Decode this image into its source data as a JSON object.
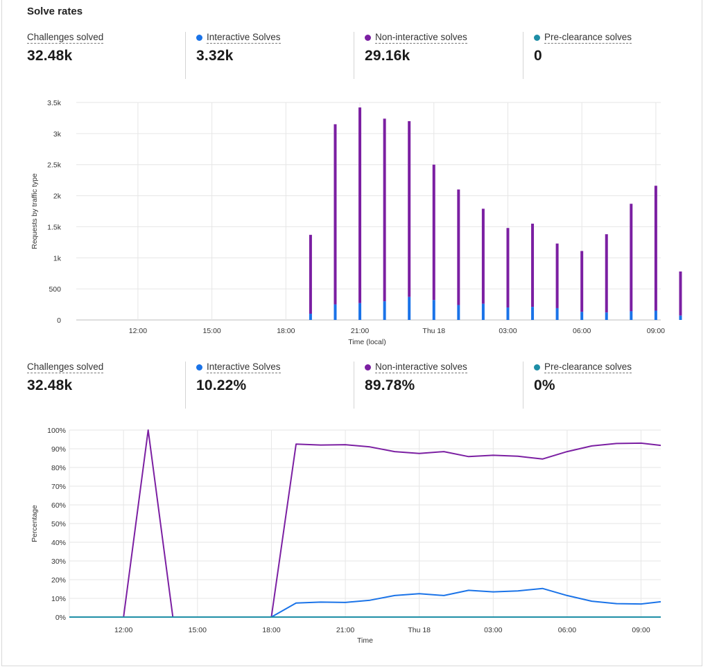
{
  "title": "Solve rates",
  "colors": {
    "interactive": "#1a73e8",
    "noninteractive": "#7b1fa2",
    "preclearance": "#1e8ea6"
  },
  "stats_counts": [
    {
      "label": "Challenges solved",
      "value": "32.48k",
      "dot": null
    },
    {
      "label": "Interactive Solves",
      "value": "3.32k",
      "dot": "#1a73e8"
    },
    {
      "label": "Non-interactive solves",
      "value": "29.16k",
      "dot": "#7b1fa2"
    },
    {
      "label": "Pre-clearance solves",
      "value": "0",
      "dot": "#1e8ea6"
    }
  ],
  "stats_percent": [
    {
      "label": "Challenges solved",
      "value": "32.48k",
      "dot": null
    },
    {
      "label": "Interactive Solves",
      "value": "10.22%",
      "dot": "#1a73e8"
    },
    {
      "label": "Non-interactive solves",
      "value": "89.78%",
      "dot": "#7b1fa2"
    },
    {
      "label": "Pre-clearance solves",
      "value": "0%",
      "dot": "#1e8ea6"
    }
  ],
  "chart_data": [
    {
      "type": "bar",
      "stacked": true,
      "ylabel": "Requests by traffic type",
      "xlabel": "Time (local)",
      "ylim": [
        0,
        3500
      ],
      "yticks": [
        "0",
        "500",
        "1k",
        "1.5k",
        "2k",
        "2.5k",
        "3k",
        "3.5k"
      ],
      "xlim": [
        9.5,
        33.2
      ],
      "xticks": [
        {
          "x": 12,
          "label": "12:00"
        },
        {
          "x": 15,
          "label": "15:00"
        },
        {
          "x": 18,
          "label": "18:00"
        },
        {
          "x": 21,
          "label": "21:00"
        },
        {
          "x": 24,
          "label": "Thu 18"
        },
        {
          "x": 27,
          "label": "03:00"
        },
        {
          "x": 30,
          "label": "06:00"
        },
        {
          "x": 33,
          "label": "09:00"
        }
      ],
      "x": [
        19,
        20,
        21,
        22,
        23,
        24,
        25,
        26,
        27,
        28,
        29,
        30,
        31,
        32,
        33,
        34
      ],
      "series": [
        {
          "name": "Interactive Solves",
          "values": [
            100,
            250,
            270,
            300,
            370,
            320,
            240,
            260,
            200,
            210,
            190,
            130,
            120,
            140,
            150,
            70
          ]
        },
        {
          "name": "Non-interactive solves",
          "values": [
            1270,
            2900,
            3150,
            2940,
            2830,
            2180,
            1860,
            1530,
            1280,
            1340,
            1040,
            980,
            1260,
            1730,
            2010,
            710
          ]
        },
        {
          "name": "Pre-clearance solves",
          "values": [
            0,
            0,
            0,
            0,
            0,
            0,
            0,
            0,
            0,
            0,
            0,
            0,
            0,
            0,
            0,
            0
          ]
        }
      ]
    },
    {
      "type": "line",
      "ylabel": "Percentage",
      "xlabel": "Time",
      "ylim": [
        0,
        100
      ],
      "yticks": [
        "0%",
        "10%",
        "20%",
        "30%",
        "40%",
        "50%",
        "60%",
        "70%",
        "80%",
        "90%",
        "100%"
      ],
      "xlim": [
        9.8,
        33.8
      ],
      "xticks": [
        {
          "x": 12,
          "label": "12:00"
        },
        {
          "x": 15,
          "label": "15:00"
        },
        {
          "x": 18,
          "label": "18:00"
        },
        {
          "x": 21,
          "label": "21:00"
        },
        {
          "x": 24,
          "label": "Thu 18"
        },
        {
          "x": 27,
          "label": "03:00"
        },
        {
          "x": 30,
          "label": "06:00"
        },
        {
          "x": 33,
          "label": "09:00"
        }
      ],
      "series": [
        {
          "name": "Non-interactive solves",
          "x": [
            9.8,
            12,
            13,
            14,
            18,
            19,
            20,
            21,
            22,
            23,
            24,
            25,
            26,
            27,
            28,
            29,
            30,
            31,
            32,
            33,
            33.8
          ],
          "values": [
            0,
            0,
            100,
            0,
            0,
            92.5,
            92,
            92.2,
            91,
            88.5,
            87.5,
            88.5,
            85.8,
            86.5,
            86,
            84.5,
            88.5,
            91.5,
            92.8,
            93,
            91.8
          ]
        },
        {
          "name": "Interactive Solves",
          "x": [
            9.8,
            18,
            19,
            20,
            21,
            22,
            23,
            24,
            25,
            26,
            27,
            28,
            29,
            30,
            31,
            32,
            33,
            33.8
          ],
          "values": [
            0,
            0,
            7.5,
            8,
            7.8,
            9,
            11.5,
            12.5,
            11.5,
            14.3,
            13.5,
            14,
            15.3,
            11.5,
            8.5,
            7.2,
            7,
            8.2
          ]
        },
        {
          "name": "Pre-clearance solves",
          "x": [
            9.8,
            33.8
          ],
          "values": [
            0,
            0
          ]
        }
      ]
    }
  ]
}
